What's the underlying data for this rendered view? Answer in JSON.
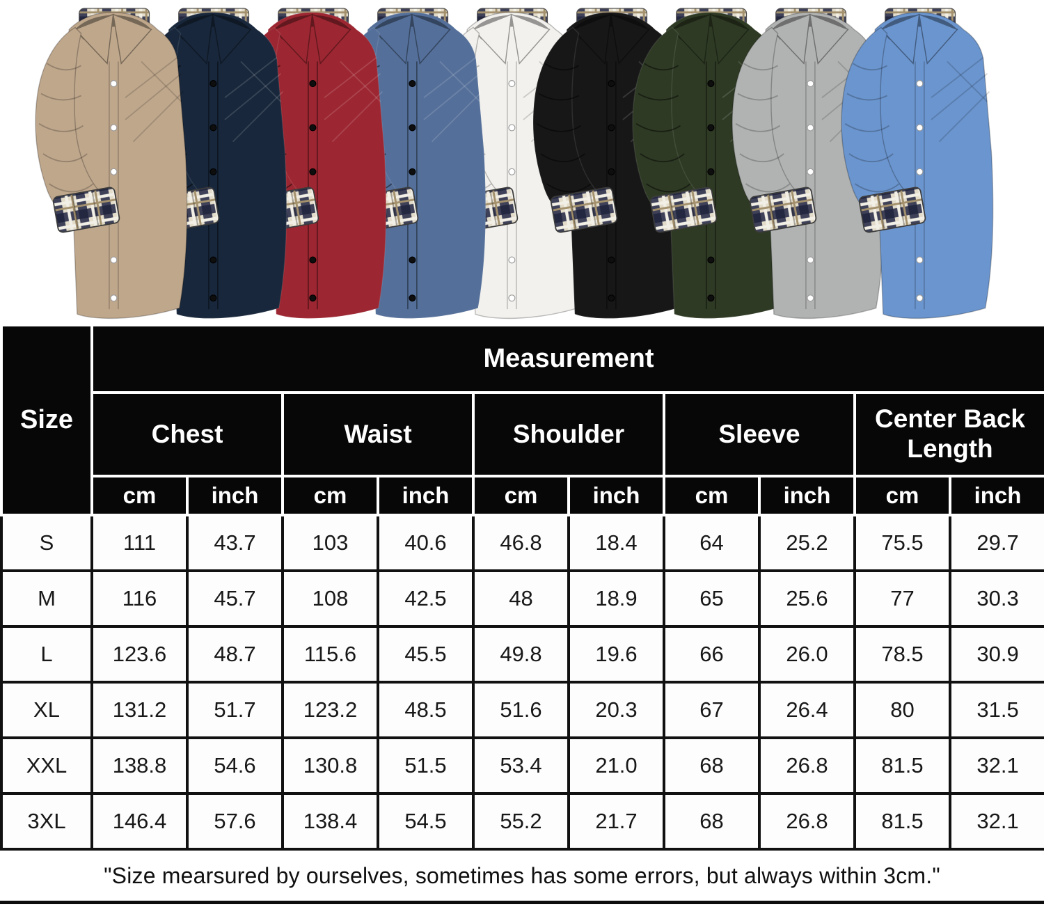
{
  "product_gallery": {
    "shirts": [
      {
        "name": "khaki",
        "color": "#bfa78c"
      },
      {
        "name": "navy",
        "color": "#18273b"
      },
      {
        "name": "wine-red",
        "color": "#9c2631"
      },
      {
        "name": "steel-blue",
        "color": "#546f99"
      },
      {
        "name": "white",
        "color": "#f2f1ed"
      },
      {
        "name": "black",
        "color": "#171717"
      },
      {
        "name": "army-green",
        "color": "#2e3a24"
      },
      {
        "name": "light-gray",
        "color": "#b1b3b2"
      },
      {
        "name": "light-blue",
        "color": "#6b95ce"
      }
    ],
    "plaid_colors": {
      "base": "#e3dcca",
      "navy": "#30344e",
      "tan": "#a3906c",
      "cream": "#f2efe6"
    },
    "collar_label_color": "#f6f4ef"
  },
  "size_chart": {
    "corner_label": "Size",
    "header": "Measurement",
    "group_labels": [
      "Chest",
      "Waist",
      "Shoulder",
      "Sleeve",
      "Center Back Length"
    ],
    "unit_labels": [
      "cm",
      "inch"
    ],
    "rows": [
      {
        "size": "S",
        "values": [
          "111",
          "43.7",
          "103",
          "40.6",
          "46.8",
          "18.4",
          "64",
          "25.2",
          "75.5",
          "29.7"
        ]
      },
      {
        "size": "M",
        "values": [
          "116",
          "45.7",
          "108",
          "42.5",
          "48",
          "18.9",
          "65",
          "25.6",
          "77",
          "30.3"
        ]
      },
      {
        "size": "L",
        "values": [
          "123.6",
          "48.7",
          "115.6",
          "45.5",
          "49.8",
          "19.6",
          "66",
          "26.0",
          "78.5",
          "30.9"
        ]
      },
      {
        "size": "XL",
        "values": [
          "131.2",
          "51.7",
          "123.2",
          "48.5",
          "51.6",
          "20.3",
          "67",
          "26.4",
          "80",
          "31.5"
        ]
      },
      {
        "size": "XXL",
        "values": [
          "138.8",
          "54.6",
          "130.8",
          "51.5",
          "53.4",
          "21.0",
          "68",
          "26.8",
          "81.5",
          "32.1"
        ]
      },
      {
        "size": "3XL",
        "values": [
          "146.4",
          "57.6",
          "138.4",
          "54.5",
          "55.2",
          "21.7",
          "68",
          "26.8",
          "81.5",
          "32.1"
        ]
      }
    ],
    "colors": {
      "header_bg": "#070707",
      "header_text": "#ffffff",
      "body_bg": "#fdfdfd",
      "body_text": "#181818",
      "grid": "#111111"
    }
  },
  "footnote": "\"Size mearsured by ourselves, sometimes has some errors, but always within 3cm.\""
}
